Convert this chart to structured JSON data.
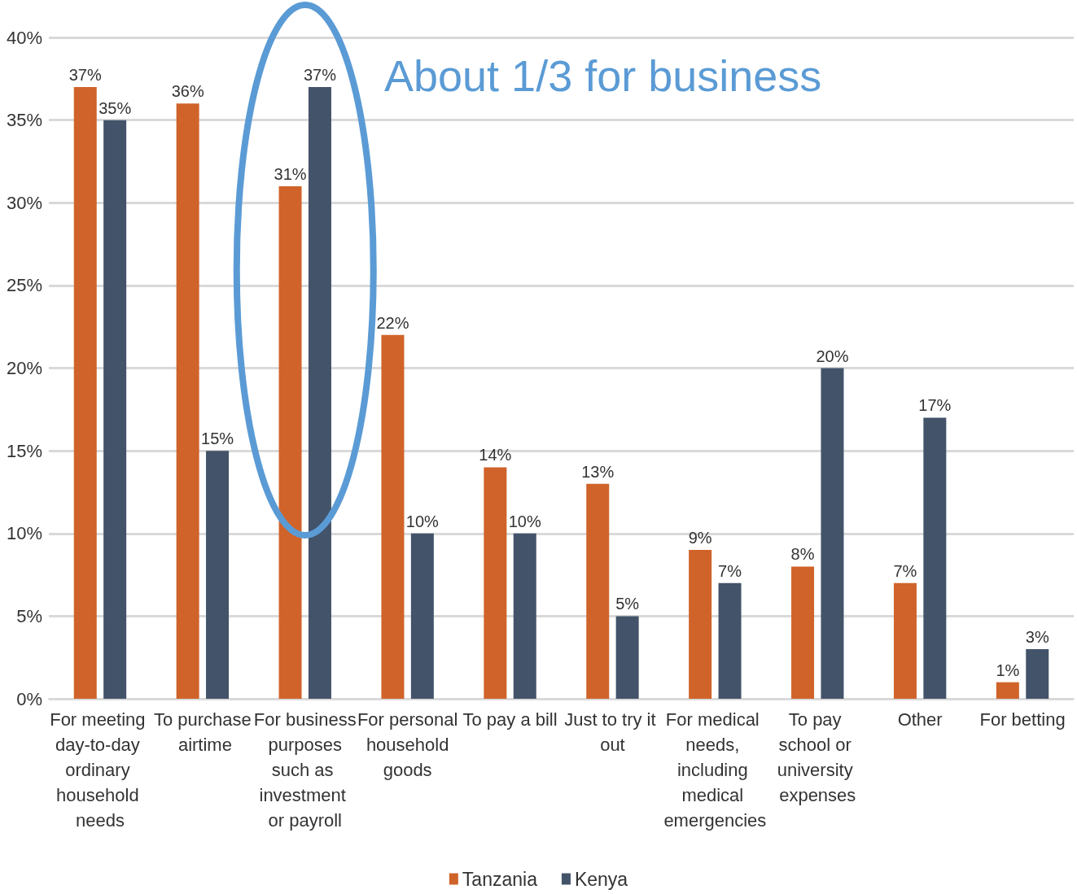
{
  "chart_data": {
    "type": "bar",
    "categories": [
      "For meeting day-to-day ordinary household needs",
      "To purchase airtime",
      "For business purposes such as investment or payroll",
      "For personal household goods",
      "To pay a bill",
      "Just to try it out",
      "For medical needs, including medical emergencies",
      "To pay school or university expenses",
      "Other",
      "For betting"
    ],
    "series": [
      {
        "name": "Tanzania",
        "color": "#d0632a",
        "values": [
          37,
          36,
          31,
          22,
          14,
          13,
          9,
          8,
          7,
          1
        ],
        "value_labels": [
          "37%",
          "36%",
          "31%",
          "22%",
          "14%",
          "13%",
          "9%",
          "8%",
          "7%",
          "1%"
        ]
      },
      {
        "name": "Kenya",
        "color": "#435369",
        "values": [
          35,
          15,
          37,
          10,
          10,
          5,
          7,
          20,
          17,
          3
        ],
        "value_labels": [
          "35%",
          "15%",
          "37%",
          "10%",
          "10%",
          "5%",
          "7%",
          "20%",
          "17%",
          "3%"
        ]
      }
    ],
    "ylim": [
      0,
      40
    ],
    "yticks": [
      {
        "value": 0,
        "label": "0%"
      },
      {
        "value": 5,
        "label": "5%"
      },
      {
        "value": 10,
        "label": "10%"
      },
      {
        "value": 15,
        "label": "15%"
      },
      {
        "value": 20,
        "label": "20%"
      },
      {
        "value": 25,
        "label": "25%"
      },
      {
        "value": 30,
        "label": "30%"
      },
      {
        "value": 35,
        "label": "35%"
      },
      {
        "value": 40,
        "label": "40%"
      }
    ],
    "grid": "y",
    "legend": "bottom",
    "annotations": [
      "About 1/3 for business"
    ]
  }
}
